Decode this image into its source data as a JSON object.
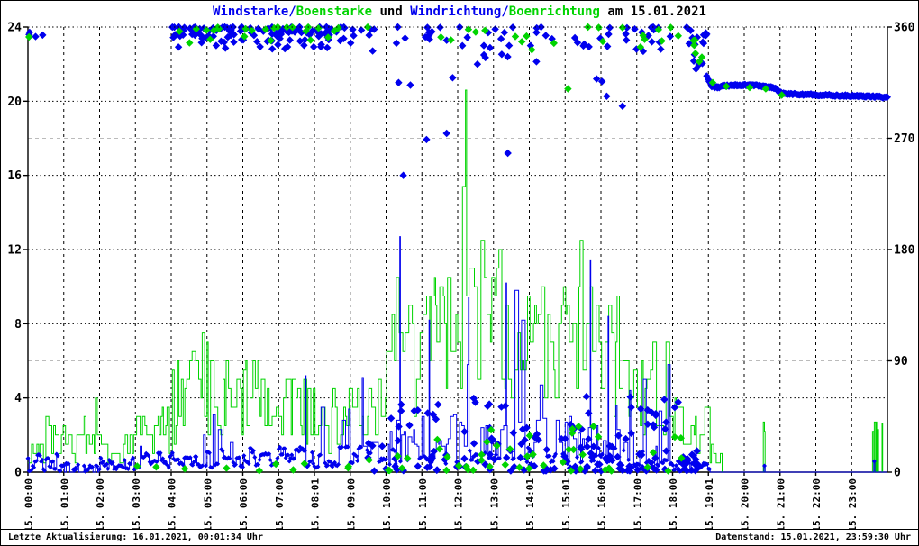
{
  "title_parts": [
    {
      "text": "Windstarke/",
      "color_key": "wind"
    },
    {
      "text": "Boenstarke",
      "color_key": "gust"
    },
    {
      "text": " und ",
      "color_key": "text"
    },
    {
      "text": "Windrichtung/",
      "color_key": "wind"
    },
    {
      "text": "Boenrichtung",
      "color_key": "gust"
    },
    {
      "text": " am 15.01.2021",
      "color_key": "text"
    }
  ],
  "status_bar": {
    "left": "Letzte Aktualisierung: 16.01.2021, 00:01:34 Uhr",
    "right": "Datenstand: 15.01.2021, 23:59:30 Uhr"
  },
  "chart_data": {
    "type": "line",
    "title": "Windstarke/Boenstarke und Windrichtung/Boenrichtung am 15.01.2021",
    "x_axis": {
      "range_hours": [
        0,
        24
      ],
      "tick_labels": [
        "15. 00:00",
        "15. 01:00",
        "15. 02:00",
        "15. 03:00",
        "15. 04:00",
        "15. 05:00",
        "15. 06:00",
        "15. 07:00",
        "15. 08:01",
        "15. 09:00",
        "15. 10:00",
        "15. 11:00",
        "15. 12:00",
        "15. 13:00",
        "15. 14:01",
        "15. 15:01",
        "15. 16:00",
        "15. 17:00",
        "15. 18:00",
        "15. 19:01",
        "15. 20:00",
        "15. 21:00",
        "15. 22:00",
        "15. 23:00"
      ]
    },
    "y_left": {
      "range": [
        0,
        24
      ],
      "ticks": [
        24,
        20,
        16,
        12,
        8,
        4,
        0
      ],
      "grid_major": [
        4,
        8,
        12,
        16,
        20,
        24
      ],
      "grid_minor": [
        6,
        18
      ]
    },
    "y_right": {
      "range": [
        0,
        360
      ],
      "ticks": [
        360,
        270,
        180,
        90,
        0
      ]
    },
    "colors": {
      "wind": "#0000ee",
      "gust": "#00d400",
      "text": "#000000",
      "grid": "#000000",
      "grid_minor": "#bbbbbb",
      "background": "#ffffff"
    },
    "legend_position": "none",
    "grid": true,
    "series": [
      {
        "name": "Windstarke",
        "style": "step-line",
        "axis": "left",
        "color_key": "wind",
        "quant": 0.1,
        "bias": 1.5,
        "point_beads_below": 1.35,
        "hourly_envelope": [
          [
            0.1,
            0.9,
            3.8
          ],
          [
            0.0,
            0.4,
            2.6
          ],
          [
            0.2,
            0.8,
            1.4
          ],
          [
            0.3,
            1.0,
            2.2
          ],
          [
            0.3,
            1.1,
            2.6
          ],
          [
            0.3,
            1.2,
            4.3
          ],
          [
            0.4,
            1.4,
            4.6
          ],
          [
            0.3,
            1.4,
            5.2
          ],
          [
            0.3,
            1.5,
            4.8
          ],
          [
            0.4,
            1.8,
            5.4
          ],
          [
            0.4,
            2.8,
            9.0
          ],
          [
            0.5,
            3.2,
            8.2
          ],
          [
            0.5,
            3.4,
            9.4
          ],
          [
            0.5,
            3.4,
            10.2
          ],
          [
            0.5,
            3.0,
            8.0
          ],
          [
            0.5,
            3.4,
            11.4
          ],
          [
            0.4,
            3.0,
            8.4
          ],
          [
            0.3,
            2.2,
            6.6
          ],
          [
            0.1,
            0.6,
            2.0
          ],
          [
            0.0,
            0.15,
            0.3
          ],
          [
            0,
            0,
            0
          ],
          [
            0,
            0,
            0
          ],
          [
            0,
            0,
            0
          ],
          [
            0,
            0,
            0
          ]
        ],
        "spikes": [
          [
            7.75,
            5.2,
            1
          ],
          [
            10.38,
            12.7,
            1
          ],
          [
            11.2,
            8.2,
            1
          ],
          [
            12.3,
            9.4,
            1
          ],
          [
            13.35,
            10.2,
            1
          ],
          [
            15.7,
            11.4,
            1
          ],
          [
            16.2,
            8.4,
            1
          ],
          [
            20.55,
            0.4,
            2
          ],
          [
            23.62,
            0.6,
            2
          ]
        ],
        "zero_ranges": [
          [
            19.05,
            24.01
          ]
        ]
      },
      {
        "name": "Boenstarke",
        "style": "step-line",
        "axis": "left",
        "color_key": "gust",
        "quant": 0.5,
        "bias": 1.0,
        "point_beads_below": 0,
        "hourly_envelope": [
          [
            0.5,
            3.2,
            5.6
          ],
          [
            0.5,
            2.6,
            4.2
          ],
          [
            0.5,
            2.6,
            4.4
          ],
          [
            0.8,
            3.4,
            5.2
          ],
          [
            1.5,
            6.2,
            7.6
          ],
          [
            2.0,
            6.4,
            7.6
          ],
          [
            2.0,
            6.2,
            8.0
          ],
          [
            1.5,
            5.2,
            8.0
          ],
          [
            1.2,
            4.6,
            7.7
          ],
          [
            1.5,
            5.4,
            7.7
          ],
          [
            3.0,
            9.8,
            13.0
          ],
          [
            4.0,
            11.0,
            12.6
          ],
          [
            4.0,
            11.4,
            12.6
          ],
          [
            4.0,
            11.0,
            12.6
          ],
          [
            3.6,
            10.6,
            12.4
          ],
          [
            4.0,
            11.0,
            12.6
          ],
          [
            3.0,
            10.0,
            12.4
          ],
          [
            2.0,
            7.2,
            9.2
          ],
          [
            1.0,
            3.6,
            4.6
          ],
          [
            0.3,
            1.8,
            2.6
          ],
          [
            0,
            0,
            0
          ],
          [
            0,
            0,
            0
          ],
          [
            0,
            0,
            0
          ],
          [
            0,
            0,
            0
          ]
        ],
        "spikes": [
          [
            12.13,
            15.4,
            5
          ],
          [
            12.22,
            20.6,
            2
          ],
          [
            20.53,
            2.7,
            2
          ],
          [
            20.57,
            2.2,
            1
          ],
          [
            23.58,
            2.2,
            2
          ],
          [
            23.63,
            2.7,
            2
          ],
          [
            23.68,
            2.7,
            1
          ],
          [
            23.72,
            2.3,
            2
          ],
          [
            23.85,
            2.6,
            1
          ]
        ],
        "zero_ranges": [
          [
            19.38,
            24.01
          ]
        ]
      },
      {
        "name": "Windrichtung",
        "style": "scatter-diamond",
        "axis": "right",
        "color_key": "wind",
        "clusters": [
          {
            "t": [
              0.02,
              0.55
            ],
            "dir": [
              350,
              359
            ],
            "n": 4,
            "anchor": "high",
            "bias": 1
          },
          {
            "t": [
              4.0,
              8.4
            ],
            "dir": [
              341,
              360
            ],
            "n": 120,
            "anchor": "high",
            "bias": 2.5
          },
          {
            "t": [
              8.4,
              9.6
            ],
            "dir": [
              344,
              360
            ],
            "n": 14,
            "anchor": "high",
            "bias": 2
          },
          {
            "t": [
              9.6,
              18.55
            ],
            "dir": [
              334,
              360
            ],
            "n": 62,
            "anchor": "high",
            "bias": 2
          },
          {
            "t": [
              9.4,
              18.8
            ],
            "dir": [
              1,
              62
            ],
            "n": 150,
            "anchor": "low",
            "bias": 2.2
          },
          {
            "t": [
              18.2,
              18.75
            ],
            "dir": [
              5,
              20
            ],
            "n": 16,
            "anchor": "low",
            "bias": 1
          },
          {
            "t": [
              18.52,
              18.95
            ],
            "dir": [
              326,
              358
            ],
            "n": 14,
            "anchor": "high",
            "bias": 1
          }
        ],
        "outliers": [
          [
            10.35,
            315
          ],
          [
            10.48,
            240
          ],
          [
            10.68,
            313
          ],
          [
            11.13,
            269
          ],
          [
            11.69,
            274
          ],
          [
            11.86,
            319
          ],
          [
            12.55,
            330
          ],
          [
            13.4,
            258
          ],
          [
            14.2,
            332
          ],
          [
            15.88,
            318
          ],
          [
            16.03,
            316
          ],
          [
            16.16,
            304
          ],
          [
            16.6,
            296
          ]
        ],
        "trail": [
          [
            18.95,
            321
          ],
          [
            19.02,
            316
          ],
          [
            19.1,
            312
          ],
          [
            19.25,
            311
          ],
          [
            19.45,
            312.5
          ],
          [
            19.8,
            313
          ],
          [
            20.2,
            313
          ],
          [
            20.6,
            312
          ],
          [
            20.85,
            310.5
          ],
          [
            21.0,
            307
          ],
          [
            21.15,
            306
          ],
          [
            21.6,
            305.5
          ],
          [
            22.2,
            305
          ],
          [
            22.8,
            304.5
          ],
          [
            23.4,
            304
          ],
          [
            23.8,
            303.5
          ],
          [
            24.0,
            303
          ]
        ]
      },
      {
        "name": "Boenrichtung",
        "style": "scatter-diamond",
        "axis": "right",
        "color_key": "gust",
        "clusters": [
          {
            "t": [
              4.0,
              9.5
            ],
            "dir": [
              346,
              360
            ],
            "n": 26,
            "anchor": "high",
            "bias": 2
          },
          {
            "t": [
              11.3,
              19.0
            ],
            "dir": [
              340,
              360
            ],
            "n": 20,
            "anchor": "high",
            "bias": 2
          },
          {
            "t": [
              9.4,
              18.6
            ],
            "dir": [
              1,
              40
            ],
            "n": 48,
            "anchor": "low",
            "bias": 2
          },
          {
            "t": [
              2.5,
              9.4
            ],
            "dir": [
              1,
              8
            ],
            "n": 10,
            "anchor": "low",
            "bias": 1
          },
          {
            "t": [
              18.55,
              18.9
            ],
            "dir": [
              330,
              356
            ],
            "n": 5,
            "anchor": "high",
            "bias": 1
          }
        ],
        "outliers": [
          [
            0.03,
            352
          ],
          [
            12.3,
            358
          ],
          [
            12.5,
            356
          ],
          [
            15.08,
            310
          ],
          [
            19.12,
            315
          ],
          [
            19.5,
            312
          ],
          [
            20.15,
            311
          ],
          [
            20.6,
            310
          ],
          [
            21.05,
            305
          ]
        ],
        "trail": []
      }
    ]
  }
}
